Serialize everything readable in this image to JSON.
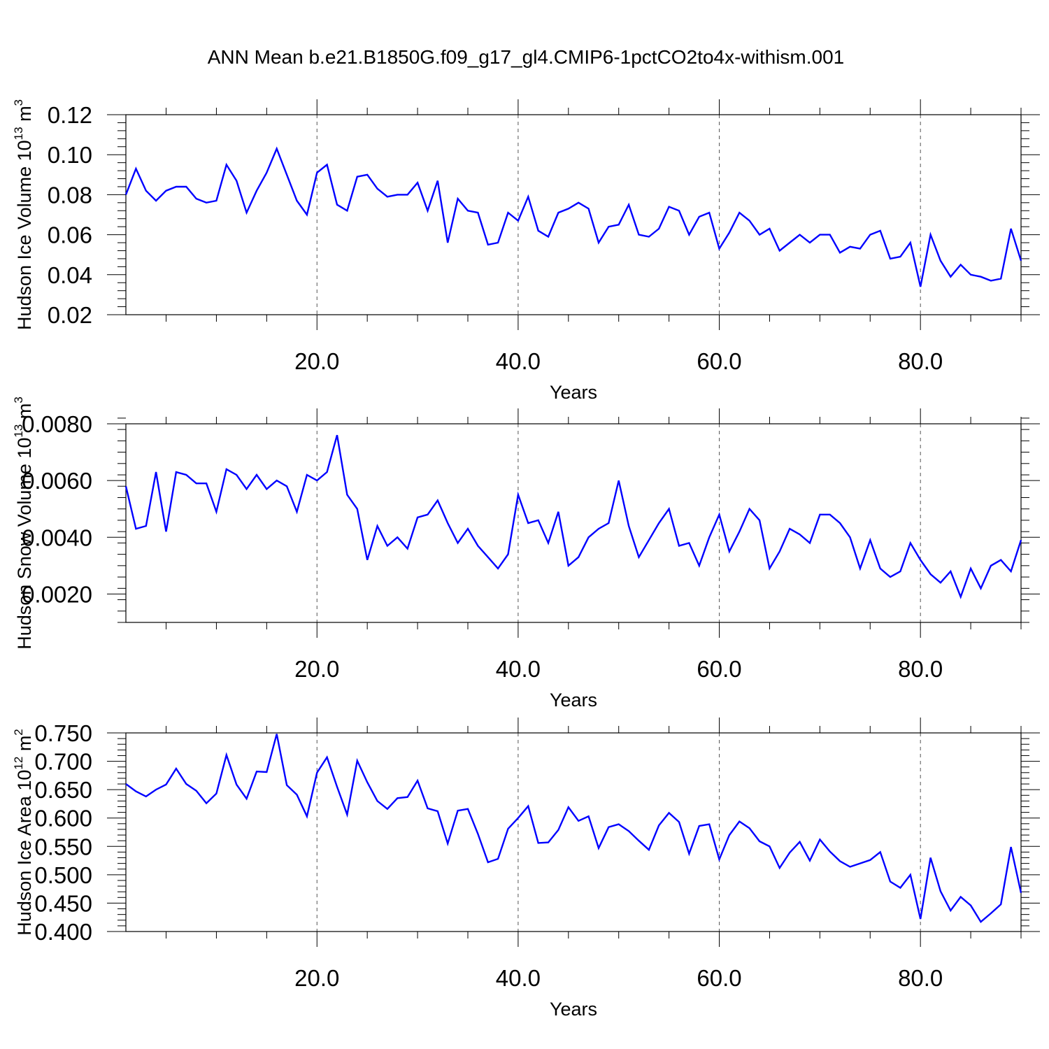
{
  "figure": {
    "title": "ANN Mean b.e21.B1850G.f09_g17_gl4.CMIP6-1pctCO2to4x-withism.001"
  },
  "chart_data": [
    {
      "type": "line",
      "title": "",
      "xlabel": "Years",
      "ylabel": "Hudson Ice Volume 10",
      "ylabel_exp": "13",
      "ylabel_unit": " m",
      "ylabel_unit_exp": "3",
      "xlim": [
        1,
        90
      ],
      "ylim": [
        0.02,
        0.12
      ],
      "xticks": [
        20,
        40,
        60,
        80
      ],
      "xtick_labels": [
        "20.0",
        "40.0",
        "60.0",
        "80.0"
      ],
      "yticks": [
        0.02,
        0.04,
        0.06,
        0.08,
        0.1,
        0.12
      ],
      "ytick_labels": [
        "0.02",
        "0.04",
        "0.06",
        "0.08",
        "0.10",
        "0.12"
      ],
      "grid": "vertical dashed at major x ticks",
      "color": "#0000ff",
      "series": [
        {
          "x": [
            1,
            2,
            3,
            4,
            5,
            6,
            7,
            8,
            9,
            10,
            11,
            12,
            13,
            14,
            15,
            16,
            17,
            18,
            19,
            20,
            21,
            22,
            23,
            24,
            25,
            26,
            27,
            28,
            29,
            30,
            31,
            32,
            33,
            34,
            35,
            36,
            37,
            38,
            39,
            40,
            41,
            42,
            43,
            44,
            45,
            46,
            47,
            48,
            49,
            50,
            51,
            52,
            53,
            54,
            55,
            56,
            57,
            58,
            59,
            60,
            61,
            62,
            63,
            64,
            65,
            66,
            67,
            68,
            69,
            70,
            71,
            72,
            73,
            74,
            75,
            76,
            77,
            78,
            79,
            80,
            81,
            82,
            83,
            84,
            85,
            86,
            87,
            88,
            89,
            90
          ],
          "values": [
            0.08,
            0.093,
            0.082,
            0.077,
            0.082,
            0.084,
            0.084,
            0.078,
            0.076,
            0.077,
            0.095,
            0.087,
            0.071,
            0.082,
            0.091,
            0.103,
            0.09,
            0.077,
            0.07,
            0.091,
            0.095,
            0.075,
            0.072,
            0.089,
            0.09,
            0.083,
            0.079,
            0.08,
            0.08,
            0.086,
            0.072,
            0.087,
            0.056,
            0.078,
            0.072,
            0.071,
            0.055,
            0.056,
            0.071,
            0.067,
            0.079,
            0.062,
            0.059,
            0.071,
            0.073,
            0.076,
            0.073,
            0.056,
            0.064,
            0.065,
            0.075,
            0.06,
            0.059,
            0.063,
            0.074,
            0.072,
            0.06,
            0.069,
            0.071,
            0.053,
            0.061,
            0.071,
            0.067,
            0.06,
            0.063,
            0.052,
            0.056,
            0.06,
            0.056,
            0.06,
            0.06,
            0.051,
            0.054,
            0.053,
            0.06,
            0.062,
            0.048,
            0.049,
            0.056,
            0.034,
            0.06,
            0.047,
            0.039,
            0.045,
            0.04,
            0.039,
            0.037,
            0.038,
            0.063,
            0.047
          ]
        }
      ]
    },
    {
      "type": "line",
      "title": "",
      "xlabel": "Years",
      "ylabel": "Hudson Snow Volume 10",
      "ylabel_exp": "13",
      "ylabel_unit": " m",
      "ylabel_unit_exp": "3",
      "xlim": [
        1,
        90
      ],
      "ylim": [
        0.001,
        0.008
      ],
      "xticks": [
        20,
        40,
        60,
        80
      ],
      "xtick_labels": [
        "20.0",
        "40.0",
        "60.0",
        "80.0"
      ],
      "yticks": [
        0.002,
        0.004,
        0.006,
        0.008
      ],
      "ytick_labels": [
        "0.0020",
        "0.0040",
        "0.0060",
        "0.0080"
      ],
      "grid": "vertical dashed at major x ticks",
      "color": "#0000ff",
      "series": [
        {
          "x": [
            1,
            2,
            3,
            4,
            5,
            6,
            7,
            8,
            9,
            10,
            11,
            12,
            13,
            14,
            15,
            16,
            17,
            18,
            19,
            20,
            21,
            22,
            23,
            24,
            25,
            26,
            27,
            28,
            29,
            30,
            31,
            32,
            33,
            34,
            35,
            36,
            37,
            38,
            39,
            40,
            41,
            42,
            43,
            44,
            45,
            46,
            47,
            48,
            49,
            50,
            51,
            52,
            53,
            54,
            55,
            56,
            57,
            58,
            59,
            60,
            61,
            62,
            63,
            64,
            65,
            66,
            67,
            68,
            69,
            70,
            71,
            72,
            73,
            74,
            75,
            76,
            77,
            78,
            79,
            80,
            81,
            82,
            83,
            84,
            85,
            86,
            87,
            88,
            89,
            90
          ],
          "values": [
            0.0058,
            0.0043,
            0.0044,
            0.0063,
            0.0042,
            0.0063,
            0.0062,
            0.0059,
            0.0059,
            0.0049,
            0.0064,
            0.0062,
            0.0057,
            0.0062,
            0.0057,
            0.006,
            0.0058,
            0.0049,
            0.0062,
            0.006,
            0.0063,
            0.0076,
            0.0055,
            0.005,
            0.0032,
            0.0044,
            0.0037,
            0.004,
            0.0036,
            0.0047,
            0.0048,
            0.0053,
            0.0045,
            0.0038,
            0.0043,
            0.0037,
            0.0033,
            0.0029,
            0.0034,
            0.0055,
            0.0045,
            0.0046,
            0.0038,
            0.0049,
            0.003,
            0.0033,
            0.004,
            0.0043,
            0.0045,
            0.006,
            0.0044,
            0.0033,
            0.0039,
            0.0045,
            0.005,
            0.0037,
            0.0038,
            0.003,
            0.004,
            0.0048,
            0.0035,
            0.0042,
            0.005,
            0.0046,
            0.0029,
            0.0035,
            0.0043,
            0.0041,
            0.0038,
            0.0048,
            0.0048,
            0.0045,
            0.004,
            0.0029,
            0.0039,
            0.0029,
            0.0026,
            0.0028,
            0.0038,
            0.0032,
            0.0027,
            0.0024,
            0.0028,
            0.0019,
            0.0029,
            0.0022,
            0.003,
            0.0032,
            0.0028,
            0.0039
          ]
        }
      ]
    },
    {
      "type": "line",
      "title": "",
      "xlabel": "Years",
      "ylabel": "Hudson Ice Area 10",
      "ylabel_exp": "12",
      "ylabel_unit": " m",
      "ylabel_unit_exp": "2",
      "xlim": [
        1,
        90
      ],
      "ylim": [
        0.4,
        0.75
      ],
      "xticks": [
        20,
        40,
        60,
        80
      ],
      "xtick_labels": [
        "20.0",
        "40.0",
        "60.0",
        "80.0"
      ],
      "yticks": [
        0.4,
        0.45,
        0.5,
        0.55,
        0.6,
        0.65,
        0.7,
        0.75
      ],
      "ytick_labels": [
        "0.400",
        "0.450",
        "0.500",
        "0.550",
        "0.600",
        "0.650",
        "0.700",
        "0.750"
      ],
      "grid": "vertical dashed at major x ticks",
      "color": "#0000ff",
      "series": [
        {
          "x": [
            1,
            2,
            3,
            4,
            5,
            6,
            7,
            8,
            9,
            10,
            11,
            12,
            13,
            14,
            15,
            16,
            17,
            18,
            19,
            20,
            21,
            22,
            23,
            24,
            25,
            26,
            27,
            28,
            29,
            30,
            31,
            32,
            33,
            34,
            35,
            36,
            37,
            38,
            39,
            40,
            41,
            42,
            43,
            44,
            45,
            46,
            47,
            48,
            49,
            50,
            51,
            52,
            53,
            54,
            55,
            56,
            57,
            58,
            59,
            60,
            61,
            62,
            63,
            64,
            65,
            66,
            67,
            68,
            69,
            70,
            71,
            72,
            73,
            74,
            75,
            76,
            77,
            78,
            79,
            80,
            81,
            82,
            83,
            84,
            85,
            86,
            87,
            88,
            89,
            90
          ],
          "values": [
            0.66,
            0.647,
            0.638,
            0.65,
            0.659,
            0.687,
            0.66,
            0.648,
            0.626,
            0.643,
            0.711,
            0.659,
            0.634,
            0.682,
            0.681,
            0.748,
            0.658,
            0.641,
            0.603,
            0.68,
            0.707,
            0.655,
            0.606,
            0.701,
            0.663,
            0.63,
            0.616,
            0.635,
            0.637,
            0.666,
            0.617,
            0.612,
            0.555,
            0.613,
            0.616,
            0.572,
            0.522,
            0.528,
            0.581,
            0.6,
            0.621,
            0.556,
            0.557,
            0.579,
            0.619,
            0.595,
            0.603,
            0.547,
            0.584,
            0.589,
            0.577,
            0.56,
            0.544,
            0.587,
            0.609,
            0.593,
            0.537,
            0.586,
            0.589,
            0.527,
            0.57,
            0.594,
            0.582,
            0.559,
            0.55,
            0.512,
            0.539,
            0.558,
            0.525,
            0.562,
            0.541,
            0.524,
            0.514,
            0.52,
            0.526,
            0.54,
            0.488,
            0.477,
            0.5,
            0.422,
            0.53,
            0.471,
            0.437,
            0.461,
            0.446,
            0.417,
            0.432,
            0.448,
            0.549,
            0.468
          ]
        }
      ]
    }
  ]
}
